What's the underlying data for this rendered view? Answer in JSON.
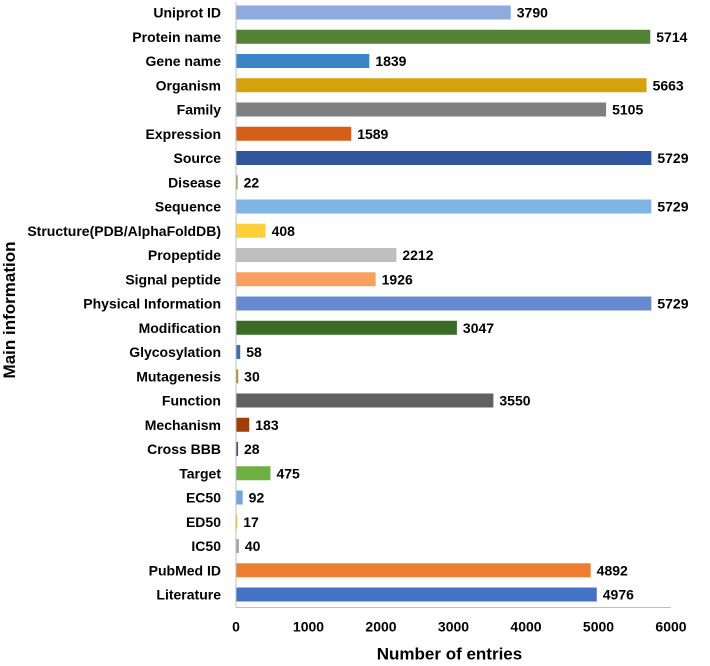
{
  "chart_data": {
    "type": "bar",
    "orientation": "horizontal",
    "xlabel": "Number of entries",
    "ylabel": "Main information",
    "xlim": [
      0,
      6000
    ],
    "xticks": [
      0,
      1000,
      2000,
      3000,
      4000,
      5000,
      6000
    ],
    "grid": false,
    "categories": [
      "Uniprot ID",
      "Protein name",
      "Gene name",
      "Organism",
      "Family",
      "Expression",
      "Source",
      "Disease",
      "Sequence",
      "Structure(PDB/AlphaFoldDB)",
      "Propeptide",
      "Signal peptide",
      "Physical Information",
      "Modification",
      "Glycosylation",
      "Mutagenesis",
      "Function",
      "Mechanism",
      "Cross BBB",
      "Target",
      "EC50",
      "ED50",
      "IC50",
      "PubMed ID",
      "Literature"
    ],
    "values": [
      3790,
      5714,
      1839,
      5663,
      5105,
      1589,
      5729,
      22,
      5729,
      408,
      2212,
      1926,
      5729,
      3047,
      58,
      30,
      3550,
      183,
      28,
      475,
      92,
      17,
      40,
      4892,
      4976
    ],
    "colors": [
      "#8faadc",
      "#548235",
      "#3a87c8",
      "#d4a20a",
      "#808080",
      "#d55f17",
      "#2f55a0",
      "#70ad47",
      "#7fb5e4",
      "#ffd03a",
      "#bfbfbf",
      "#f7a060",
      "#6888d0",
      "#3a6b27",
      "#3a6eb0",
      "#c48a10",
      "#606060",
      "#a03e0a",
      "#2d50a0",
      "#70b040",
      "#6fa8dc",
      "#ffc000",
      "#a5a5a5",
      "#ed7d31",
      "#4472c4"
    ]
  }
}
